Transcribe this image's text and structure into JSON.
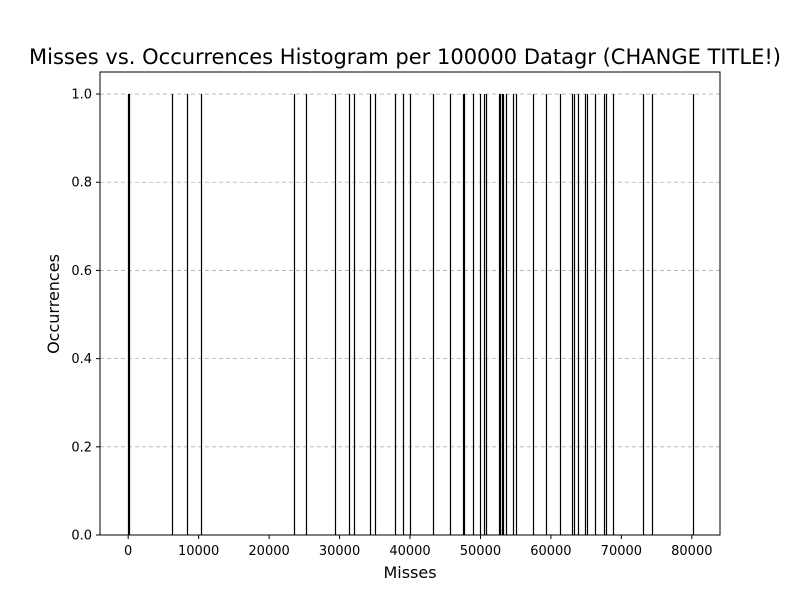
{
  "chart_data": {
    "type": "bar",
    "title": "Misses vs. Occurrences Histogram per 100000 Datagr (CHANGE TITLE!)",
    "xlabel": "Misses",
    "ylabel": "Occurrences",
    "xlim": [
      -4000,
      84000
    ],
    "ylim": [
      0,
      1.05
    ],
    "xticks": [
      0,
      10000,
      20000,
      30000,
      40000,
      50000,
      60000,
      70000,
      80000
    ],
    "xtick_labels": [
      "0",
      "10000",
      "20000",
      "30000",
      "40000",
      "50000",
      "60000",
      "70000",
      "80000"
    ],
    "yticks": [
      0.0,
      0.2,
      0.4,
      0.6,
      0.8,
      1.0
    ],
    "ytick_labels": [
      "0.0",
      "0.2",
      "0.4",
      "0.6",
      "0.8",
      "1.0"
    ],
    "grid": "y-dashed",
    "bar_color": "#000000",
    "x": [
      0,
      150,
      6200,
      8300,
      10300,
      23500,
      25300,
      29300,
      31300,
      32000,
      34300,
      35000,
      37800,
      39000,
      40000,
      43300,
      45700,
      47500,
      47700,
      49000,
      49900,
      50500,
      50800,
      52600,
      52800,
      53000,
      53200,
      53600,
      54600,
      55000,
      57400,
      59300,
      61300,
      63000,
      63300,
      63900,
      64900,
      65100,
      66200,
      67600,
      67800,
      68800,
      73000,
      74300,
      80200
    ],
    "values": [
      1,
      1,
      1,
      1,
      1,
      1,
      1,
      1,
      1,
      1,
      1,
      1,
      1,
      1,
      1,
      1,
      1,
      1,
      1,
      1,
      1,
      1,
      1,
      1,
      1,
      1,
      1,
      1,
      1,
      1,
      1,
      1,
      1,
      1,
      1,
      1,
      1,
      1,
      1,
      1,
      1,
      1,
      1,
      1,
      1
    ]
  }
}
